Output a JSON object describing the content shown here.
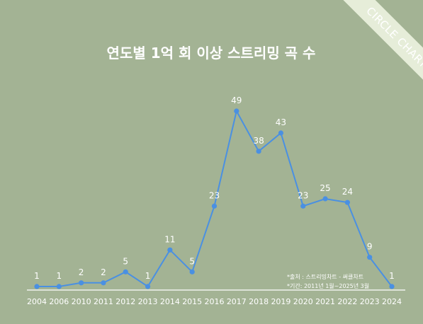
{
  "badge": "CIRCLE CHART",
  "colors": {
    "background": "#a3b394",
    "line": "#4a90e2",
    "marker": "#4a90e2",
    "text": "#ffffff",
    "ribbon": "#e6edd9"
  },
  "notes": [
    "*출처 : 스트리밍차트 - 써클차트",
    "*기간: 2011년 1월~2025년 3월"
  ],
  "chart_data": {
    "type": "line",
    "title": "연도별 1억 회 이상 스트리밍 곡 수",
    "categories": [
      "2004",
      "2006",
      "2010",
      "2011",
      "2012",
      "2013",
      "2014",
      "2015",
      "2016",
      "2017",
      "2018",
      "2019",
      "2020",
      "2021",
      "2022",
      "2023",
      "2024"
    ],
    "values": [
      1,
      1,
      2,
      2,
      5,
      1,
      11,
      5,
      23,
      49,
      38,
      43,
      23,
      25,
      24,
      9,
      1
    ],
    "data_labels": true,
    "ylim": [
      0,
      55
    ],
    "grid": false,
    "y_axis_visible": false,
    "xlabel": "",
    "ylabel": ""
  }
}
